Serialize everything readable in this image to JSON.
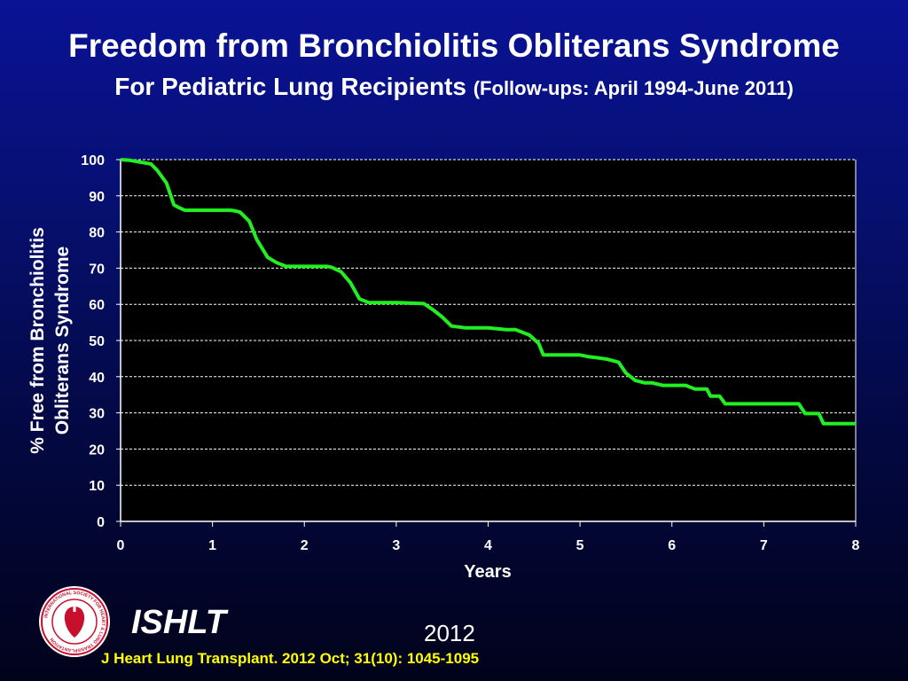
{
  "header": {
    "title": "Freedom from Bronchiolitis Obliterans Syndrome",
    "subtitle_main": "For Pediatric Lung Recipients",
    "subtitle_paren": "(Follow-ups: April 1994-June 2011)"
  },
  "chart_data": {
    "type": "line",
    "title": "Freedom from Bronchiolitis Obliterans Syndrome",
    "xlabel": "Years",
    "ylabel": [
      "% Free from Bronchiolitis",
      "Obliterans Syndrome"
    ],
    "xlim": [
      0,
      8
    ],
    "ylim": [
      0,
      100
    ],
    "x_ticks": [
      0,
      1,
      2,
      3,
      4,
      5,
      6,
      7,
      8
    ],
    "y_ticks": [
      0,
      10,
      20,
      30,
      40,
      50,
      60,
      70,
      80,
      90,
      100
    ],
    "grid": "horizontal dashed",
    "line_color": "#22ee22",
    "background": "#000000",
    "series": [
      {
        "name": "Pediatric Lung Recipients",
        "x": [
          0,
          0.1,
          0.33,
          0.4,
          0.5,
          0.58,
          0.63,
          0.7,
          0.75,
          1.2,
          1.25,
          1.3,
          1.4,
          1.48,
          1.6,
          1.7,
          1.8,
          2.25,
          2.3,
          2.4,
          2.5,
          2.6,
          2.7,
          3.0,
          3.3,
          3.4,
          3.5,
          3.6,
          3.75,
          4.0,
          4.2,
          4.3,
          4.45,
          4.55,
          4.6,
          5.0,
          5.1,
          5.2,
          5.3,
          5.42,
          5.5,
          5.6,
          5.7,
          5.78,
          5.9,
          6.15,
          6.25,
          6.3,
          6.38,
          6.42,
          6.5,
          6.52,
          6.58,
          6.63,
          7.35,
          7.38,
          7.45,
          7.5,
          7.55,
          7.6,
          7.65,
          8.0
        ],
        "y": [
          100,
          99.8,
          98.8,
          97,
          93.5,
          87.5,
          86.8,
          86,
          86,
          86,
          85.8,
          85.5,
          83,
          78,
          73,
          71.5,
          70.5,
          70.5,
          70.2,
          69,
          66,
          61.5,
          60.5,
          60.5,
          60.2,
          58.5,
          56.5,
          54,
          53.5,
          53.5,
          53.0,
          53.0,
          51.5,
          49.2,
          46,
          46,
          45.5,
          45.2,
          44.8,
          44,
          41,
          39,
          38.3,
          38.3,
          37.6,
          37.6,
          36.6,
          36.6,
          36.6,
          34.6,
          34.6,
          34.6,
          32.5,
          32.5,
          32.5,
          32.5,
          29.8,
          29.8,
          29.8,
          29.8,
          27,
          27
        ]
      }
    ]
  },
  "footer": {
    "org": "ISHLT",
    "year": "2012",
    "citation": "J Heart Lung Transplant.  2012 Oct; 31(10): 1045-1095",
    "logo_text": "INTERNATIONAL SOCIETY FOR HEART & LUNG TRANSPLANTATION"
  }
}
